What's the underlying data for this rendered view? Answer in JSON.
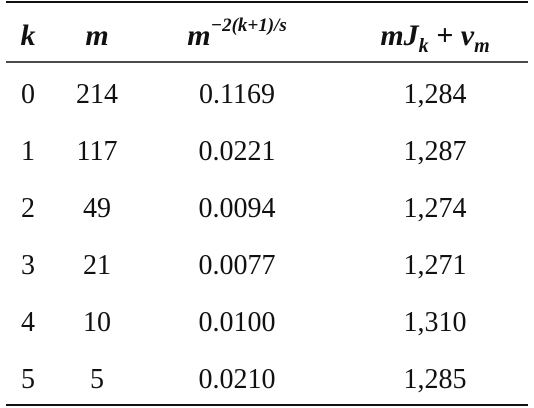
{
  "table": {
    "header": [
      [
        {
          "text": "k"
        }
      ],
      [
        {
          "text": "m"
        }
      ],
      [
        {
          "text": "m"
        },
        {
          "sup": "−2(k+1)/s"
        }
      ],
      [
        {
          "text": "mJ"
        },
        {
          "sub": "k"
        },
        {
          "text": " + v"
        },
        {
          "sub": "m"
        }
      ]
    ],
    "rows": [
      [
        "0",
        "214",
        "0.1169",
        "1,284"
      ],
      [
        "1",
        "117",
        "0.0221",
        "1,287"
      ],
      [
        "2",
        "49",
        "0.0094",
        "1,274"
      ],
      [
        "3",
        "21",
        "0.0077",
        "1,271"
      ],
      [
        "4",
        "10",
        "0.0100",
        "1,310"
      ],
      [
        "5",
        "5",
        "0.0210",
        "1,285"
      ]
    ]
  }
}
